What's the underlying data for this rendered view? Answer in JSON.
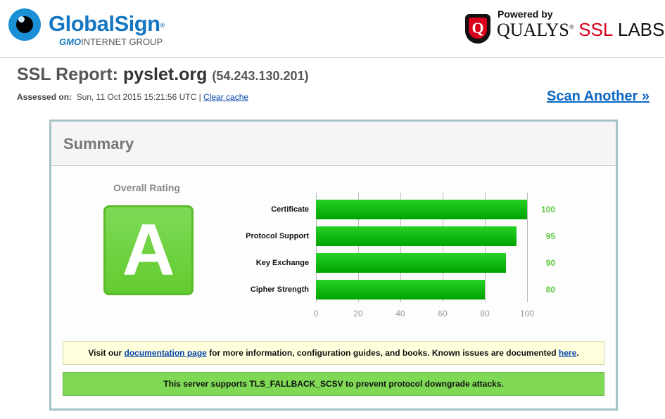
{
  "header": {
    "globalsign_logo": {
      "name": "GlobalSign",
      "registered": "®",
      "sub_bold": "GMO",
      "sub_rest": "INTERNET GROUP"
    },
    "qualys_logo": {
      "shield_letter": "Q",
      "powered_by": "Powered by",
      "qualys": "QUALYS",
      "registered": "®",
      "ssl": "SSL",
      "labs": "LABS"
    }
  },
  "report": {
    "title_prefix": "SSL Report:",
    "host": "pyslet.org",
    "ip": "(54.243.130.201)",
    "assessed_label": "Assessed on:",
    "assessed_value": "Sun, 11 Oct 2015 15:21:56 UTC |",
    "clear_cache": "Clear cache",
    "scan_another": "Scan Another »"
  },
  "summary": {
    "title": "Summary",
    "overall_label": "Overall Rating",
    "grade": "A",
    "grade_color": "#6ad13a",
    "doc_note": {
      "before": "Visit our",
      "link1": "documentation page",
      "middle": "for more information, configuration guides, and books. Known issues are documented",
      "link2": "here",
      "after": "."
    },
    "tls_note": "This server supports TLS_FALLBACK_SCSV to prevent protocol downgrade attacks."
  },
  "chart_data": {
    "type": "bar",
    "orientation": "horizontal",
    "categories": [
      "Certificate",
      "Protocol Support",
      "Key Exchange",
      "Cipher Strength"
    ],
    "values": [
      100,
      95,
      90,
      80
    ],
    "value_labels": [
      "100",
      "95",
      "90",
      "80"
    ],
    "xlim": [
      0,
      100
    ],
    "ticks": [
      "0",
      "20",
      "40",
      "60",
      "80",
      "100"
    ],
    "grid": true,
    "bar_color": "#13bb13",
    "value_label_color": "#5cc93a"
  }
}
